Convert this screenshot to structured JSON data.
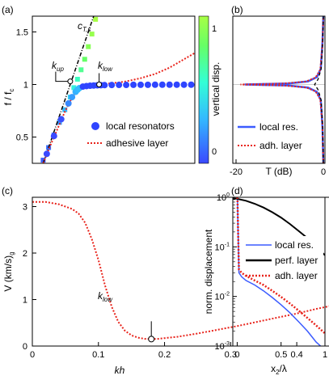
{
  "panel_labels": {
    "a": "(a)",
    "b": "(b)",
    "c": "(c)",
    "d": "(d)"
  },
  "chart_data": [
    {
      "panel": "(a)",
      "type": "scatter",
      "xlabel": "",
      "ylabel": "f / f",
      "ylabel_sub": "c",
      "xlim": [
        0,
        0.45
      ],
      "ylim": [
        0.25,
        1.65
      ],
      "yticks": [
        "0.5",
        "1",
        "1.5"
      ],
      "ytick_values": [
        0.5,
        1.0,
        1.5
      ],
      "colorbar": {
        "label": "vertical disp.",
        "range": [
          -0.1,
          1.1
        ],
        "ticks": [
          "0",
          "1"
        ],
        "tick_values": [
          0,
          1
        ],
        "colors": [
          "#3b49ff",
          "#33b8ff",
          "#33ffd6",
          "#66ff66",
          "#a8ff44"
        ]
      },
      "annotations": {
        "c_ts": "c",
        "c_ts_sub": "T,s",
        "k_up": "k",
        "k_up_sub": "up",
        "k_low": "k",
        "k_low_sub": "low"
      },
      "series": [
        {
          "name": "local resonators",
          "style": "dots",
          "color": "#2f45ff",
          "x": [
            0.0,
            0.02,
            0.04,
            0.06,
            0.08,
            0.1,
            0.11,
            0.12,
            0.125,
            0.13,
            0.14,
            0.15,
            0.16,
            0.17,
            0.18,
            0.19,
            0.2,
            0.22,
            0.24,
            0.26,
            0.28,
            0.3,
            0.32,
            0.34,
            0.36,
            0.38,
            0.4,
            0.42,
            0.44
          ],
          "y": [
            0.0,
            0.17,
            0.34,
            0.51,
            0.67,
            0.82,
            0.88,
            0.93,
            0.95,
            0.965,
            0.98,
            0.985,
            0.988,
            0.99,
            0.992,
            0.993,
            0.994,
            0.995,
            0.996,
            0.996,
            0.997,
            0.997,
            0.997,
            0.998,
            0.998,
            0.998,
            0.998,
            0.998,
            0.998
          ]
        },
        {
          "name": "",
          "style": "dots-colored",
          "role": "upper branch",
          "x": [
            0.03,
            0.045,
            0.06,
            0.075,
            0.09,
            0.105,
            0.115,
            0.125,
            0.135,
            0.145,
            0.155,
            0.165,
            0.175
          ],
          "y": [
            0.28,
            0.4,
            0.52,
            0.64,
            0.76,
            0.88,
            0.97,
            1.05,
            1.14,
            1.24,
            1.36,
            1.48,
            1.62
          ],
          "disp": [
            0.05,
            0.1,
            0.15,
            0.2,
            0.3,
            0.4,
            0.5,
            0.6,
            0.7,
            0.8,
            0.9,
            0.95,
            1.0
          ]
        },
        {
          "name": "adhesive layer",
          "style": "dotted",
          "color": "#e8231b",
          "x": [
            0.03,
            0.05,
            0.07,
            0.09,
            0.1,
            0.11,
            0.12,
            0.13,
            0.14,
            0.15,
            0.16,
            0.18,
            0.2,
            0.22,
            0.24,
            0.26,
            0.28,
            0.3,
            0.32,
            0.34,
            0.36,
            0.38,
            0.4,
            0.42,
            0.45
          ],
          "y": [
            0.25,
            0.42,
            0.58,
            0.74,
            0.81,
            0.875,
            0.925,
            0.96,
            0.98,
            0.99,
            0.995,
            1.0,
            1.005,
            1.012,
            1.02,
            1.03,
            1.045,
            1.06,
            1.08,
            1.1,
            1.13,
            1.16,
            1.2,
            1.24,
            1.3
          ]
        },
        {
          "name": "",
          "style": "dashdot",
          "color": "#000000",
          "role": "c_T,s line",
          "x": [
            0.03,
            0.17
          ],
          "y": [
            0.25,
            1.65
          ]
        }
      ],
      "markers": [
        {
          "label": "k_up",
          "x": 0.105,
          "y": 1.03
        },
        {
          "label": "k_low",
          "x": 0.185,
          "y": 1.0
        }
      ]
    },
    {
      "panel": "(b)",
      "type": "line",
      "xlabel": "T (dB)",
      "xlim": [
        -20,
        0
      ],
      "xticks": [
        "-20",
        "0"
      ],
      "xtick_values": [
        -20,
        0
      ],
      "ylim": [
        0.25,
        1.65
      ],
      "series": [
        {
          "name": "local res.",
          "style": "solid",
          "color": "#3b5bff",
          "x": [
            0,
            -0.2,
            -0.6,
            -1.5,
            -3.5,
            -8,
            -18,
            -8,
            -3.5,
            -1.5,
            -0.6,
            -0.2,
            0
          ],
          "y": [
            0.25,
            0.6,
            0.85,
            0.93,
            0.97,
            0.99,
            1.0,
            1.01,
            1.03,
            1.07,
            1.15,
            1.4,
            1.65
          ]
        },
        {
          "name": "adh. layer",
          "style": "dotted",
          "color": "#e8231b",
          "x": [
            0,
            -0.2,
            -0.7,
            -1.8,
            -4,
            -9,
            -19,
            -9,
            -4,
            -1.8,
            -0.7,
            -0.2,
            0
          ],
          "y": [
            0.25,
            0.62,
            0.86,
            0.935,
            0.972,
            0.99,
            1.0,
            1.01,
            1.028,
            1.065,
            1.14,
            1.38,
            1.65
          ]
        },
        {
          "name": "",
          "style": "dashed",
          "color": "#000000",
          "role": "reference",
          "x": [
            0,
            -0.15,
            -0.5,
            -1.2,
            -2,
            -1.2,
            -0.5,
            -0.15,
            0
          ],
          "y": [
            0.25,
            0.6,
            0.85,
            0.95,
            1.0,
            1.05,
            1.15,
            1.4,
            1.65
          ]
        }
      ]
    },
    {
      "panel": "(c)",
      "type": "line",
      "xlabel": "kh",
      "ylabel": "V  (km/s)",
      "ylabel_sub": "g",
      "xlim": [
        0,
        0.45
      ],
      "ylim": [
        0,
        3.2
      ],
      "xticks": [
        "0",
        "0.1",
        "0.2",
        "0.3",
        "0.4"
      ],
      "xtick_values": [
        0,
        0.1,
        0.2,
        0.3,
        0.4
      ],
      "yticks": [
        "0",
        "1",
        "2",
        "3"
      ],
      "ytick_values": [
        0,
        1,
        2,
        3
      ],
      "annotations": {
        "k_low": "k",
        "k_low_sub": "low"
      },
      "series": [
        {
          "name": "",
          "style": "dotted",
          "color": "#e8231b",
          "x": [
            0,
            0.02,
            0.04,
            0.06,
            0.07,
            0.08,
            0.09,
            0.1,
            0.11,
            0.12,
            0.13,
            0.14,
            0.15,
            0.16,
            0.17,
            0.18,
            0.19,
            0.2,
            0.22,
            0.25,
            0.28,
            0.31,
            0.34,
            0.37,
            0.4,
            0.43,
            0.45
          ],
          "y": [
            3.1,
            3.1,
            3.05,
            2.95,
            2.85,
            2.65,
            2.3,
            1.85,
            1.3,
            0.85,
            0.52,
            0.33,
            0.23,
            0.18,
            0.155,
            0.15,
            0.155,
            0.17,
            0.2,
            0.27,
            0.35,
            0.43,
            0.52,
            0.61,
            0.7,
            0.8,
            0.86
          ]
        }
      ],
      "markers": [
        {
          "label": "k_low",
          "x": 0.18,
          "y": 0.15
        }
      ]
    },
    {
      "panel": "(d)",
      "type": "line",
      "xlabel": "x /λ",
      "xlabel_sub": "2",
      "ylabel": "norm. displacement",
      "yscale": "log",
      "xlim": [
        -0.05,
        1
      ],
      "ylim": [
        0.001,
        1
      ],
      "xticks": [
        "0",
        "0.5",
        "1"
      ],
      "xtick_values": [
        0,
        0.5,
        1
      ],
      "yticks": [
        {
          "base": "10",
          "exp": "0"
        },
        {
          "base": "10",
          "exp": "-1"
        },
        {
          "base": "10",
          "exp": "-2"
        },
        {
          "base": "10",
          "exp": "-3"
        }
      ],
      "ytick_values": [
        1,
        0.1,
        0.01,
        0.001
      ],
      "series": [
        {
          "name": "local res.",
          "style": "solid",
          "color": "#3b5bff",
          "x": [
            0,
            0.003,
            0.01,
            0.02,
            0.05,
            0.1,
            0.2,
            0.3,
            0.4,
            0.5,
            0.6,
            0.7,
            0.8,
            0.9,
            0.95
          ],
          "y": [
            1.0,
            0.9,
            0.2,
            0.03,
            0.025,
            0.021,
            0.017,
            0.013,
            0.0095,
            0.0068,
            0.0047,
            0.0031,
            0.002,
            0.0012,
            0.001
          ]
        },
        {
          "name": "perf. layer",
          "style": "solid",
          "color": "#000000",
          "x": [
            -0.05,
            0,
            0.1,
            0.2,
            0.3,
            0.4,
            0.5,
            0.6,
            0.7,
            0.8,
            0.9,
            1.0
          ],
          "y": [
            0.95,
            0.93,
            0.85,
            0.74,
            0.62,
            0.5,
            0.39,
            0.29,
            0.21,
            0.15,
            0.1,
            0.068
          ]
        },
        {
          "name": "adh. layer",
          "style": "dotted",
          "color": "#e8231b",
          "x": [
            0,
            0.003,
            0.01,
            0.02,
            0.05,
            0.1,
            0.2,
            0.3,
            0.4,
            0.5,
            0.6,
            0.7,
            0.8,
            0.9,
            1.0
          ],
          "y": [
            1.0,
            0.9,
            0.22,
            0.035,
            0.03,
            0.026,
            0.021,
            0.017,
            0.013,
            0.0098,
            0.0072,
            0.0052,
            0.0037,
            0.0026,
            0.0018
          ]
        }
      ]
    }
  ]
}
